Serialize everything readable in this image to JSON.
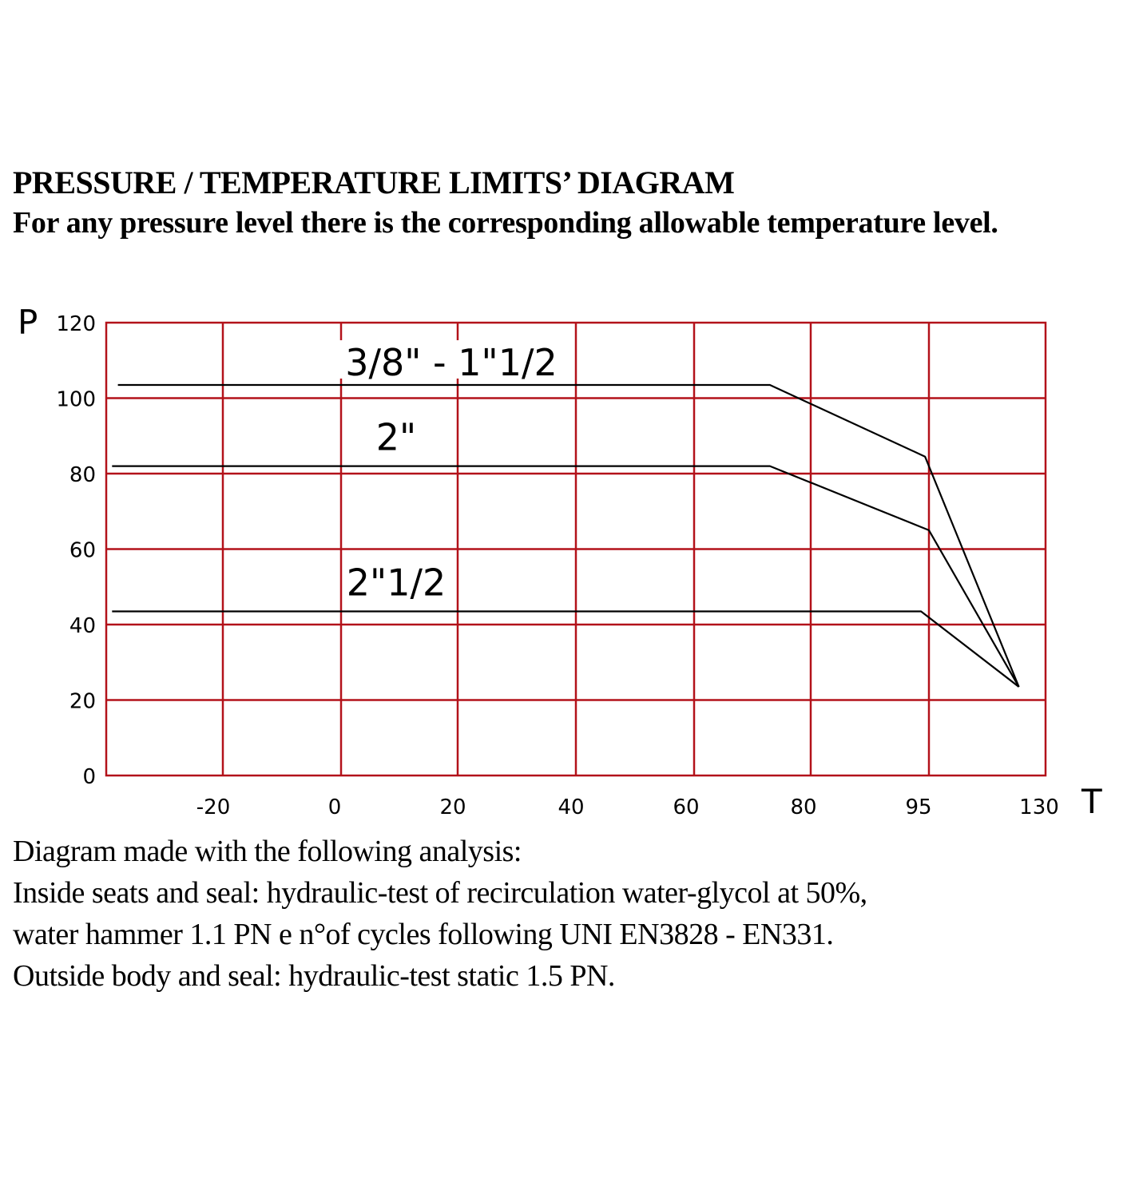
{
  "heading": {
    "title": "PRESSURE / TEMPERATURE LIMITS’ DIAGRAM",
    "subtitle": "For any pressure level there is the corresponding  allowable temperature level."
  },
  "chart_data": {
    "type": "line",
    "xlabel": "T",
    "ylabel": "P",
    "x_ticks": [
      "-20",
      "0",
      "20",
      "40",
      "60",
      "80",
      "95",
      "130"
    ],
    "y_ticks": [
      "0",
      "20",
      "40",
      "60",
      "80",
      "100",
      "120"
    ],
    "ylim": [
      0,
      120
    ],
    "grid": true,
    "grid_color": "#b3121a",
    "line_color": "#000000",
    "series": [
      {
        "name": "3/8\" - 1\"1/2",
        "points": [
          {
            "t": -38,
            "p": 103.5
          },
          {
            "t": 73,
            "p": 103.5
          },
          {
            "t": 94.5,
            "p": 84.5
          },
          {
            "t": 122,
            "p": 23.5
          }
        ]
      },
      {
        "name": "2\"",
        "points": [
          {
            "t": -39,
            "p": 82
          },
          {
            "t": 73,
            "p": 82
          },
          {
            "t": 95,
            "p": 65
          },
          {
            "t": 122,
            "p": 23.5
          }
        ]
      },
      {
        "name": "2\"1/2",
        "points": [
          {
            "t": -39,
            "p": 43.5
          },
          {
            "t": 94,
            "p": 43.5
          },
          {
            "t": 122,
            "p": 23.5
          }
        ]
      }
    ]
  },
  "notes": [
    "Diagram made with the following analysis:",
    "Inside seats and seal: hydraulic-test of recirculation  water-glycol at  50%,",
    "water hammer  1.1 PN e n°of cycles following  UNI EN3828 - EN331.",
    "Outside body and seal: hydraulic-test static 1.5 PN."
  ]
}
